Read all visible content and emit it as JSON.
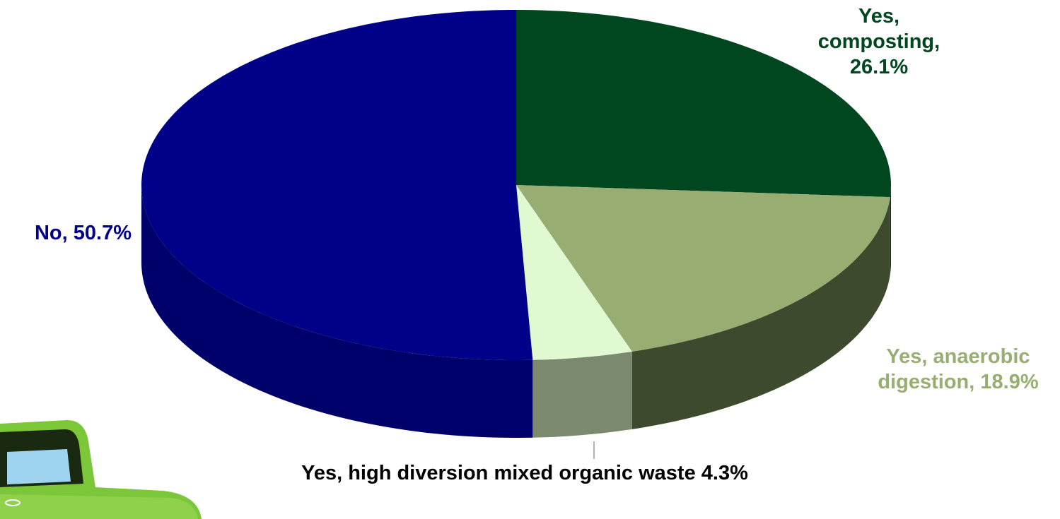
{
  "chart_data": {
    "type": "pie",
    "categories": [
      "Yes, composting,",
      "Yes, anaerobic digestion,",
      "Yes, high diversion mixed organic waste",
      "No,"
    ],
    "values": [
      26.1,
      18.9,
      4.3,
      50.7
    ],
    "value_labels": [
      "26.1%",
      "18.9%",
      "4.3%",
      "50.7%"
    ],
    "colors": [
      "#00461f",
      "#97ad72",
      "#e0f9d0",
      "#000088"
    ],
    "side_colors": [
      "#00331a",
      "#3d4a2e",
      "#7b8a6f",
      "#00006a"
    ],
    "label_colors": [
      "#00461f",
      "#97ad72",
      "#000000",
      "#000088"
    ]
  }
}
